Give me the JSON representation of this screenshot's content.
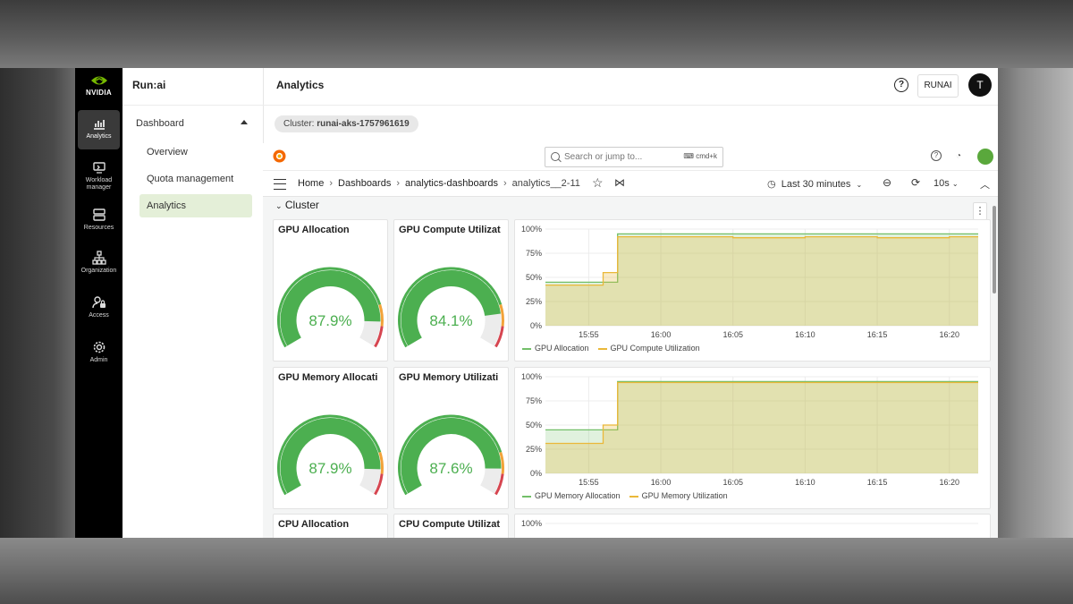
{
  "app": {
    "brand": "Run:ai",
    "logo_text": "NVIDIA",
    "page_title": "Analytics"
  },
  "rail": [
    {
      "label": "Analytics",
      "icon": "chart-icon",
      "active": true
    },
    {
      "label": "Workload manager",
      "icon": "workload-icon",
      "active": false
    },
    {
      "label": "Resources",
      "icon": "resources-icon",
      "active": false
    },
    {
      "label": "Organization",
      "icon": "organization-icon",
      "active": false
    },
    {
      "label": "Access",
      "icon": "access-icon",
      "active": false
    },
    {
      "label": "Admin",
      "icon": "gear-icon",
      "active": false
    }
  ],
  "sidebar": {
    "section": "Dashboard",
    "items": [
      {
        "label": "Overview",
        "active": false
      },
      {
        "label": "Quota management",
        "active": false
      },
      {
        "label": "Analytics",
        "active": true
      }
    ]
  },
  "header": {
    "tenant_button": "RUNAI",
    "avatar_initial": "T",
    "help_glyph": "?"
  },
  "cluster_chip": {
    "prefix": "Cluster: ",
    "name": "runai-aks-1757961619"
  },
  "grafana": {
    "search_placeholder": "Search or jump to...",
    "search_shortcut": "cmd+k",
    "breadcrumbs": [
      "Home",
      "Dashboards",
      "analytics-dashboards",
      "analytics__2-11"
    ],
    "time_range": "Last 30 minutes",
    "refresh_interval": "10s",
    "row_title": "Cluster"
  },
  "gauges": [
    {
      "title": "GPU Allocation",
      "value": 87.9,
      "display": "87.9%"
    },
    {
      "title": "GPU Compute Utilizat",
      "value": 84.1,
      "display": "84.1%"
    },
    {
      "title": "GPU Memory Allocati",
      "value": 87.9,
      "display": "87.9%"
    },
    {
      "title": "GPU Memory Utilizati",
      "value": 87.6,
      "display": "87.6%"
    },
    {
      "title": "CPU Allocation",
      "value": null,
      "display": ""
    },
    {
      "title": "CPU Compute Utilizat",
      "value": null,
      "display": ""
    }
  ],
  "colors": {
    "green": "#4caf50",
    "orange": "#f2a33a",
    "red": "#d64550",
    "accent": "#e4efd8"
  },
  "chart_data": [
    {
      "type": "area",
      "x": [
        "15:52",
        "15:53",
        "15:54",
        "15:55",
        "15:56",
        "15:57",
        "16:00",
        "16:05",
        "16:10",
        "16:15",
        "16:20",
        "16:22"
      ],
      "x_ticks": [
        "15:55",
        "16:00",
        "16:05",
        "16:10",
        "16:15",
        "16:20"
      ],
      "y_ticks": [
        "0%",
        "25%",
        "50%",
        "75%",
        "100%"
      ],
      "ylim": [
        0,
        100
      ],
      "series": [
        {
          "name": "GPU Allocation",
          "color": "#73bf69",
          "values": [
            45,
            45,
            45,
            45,
            45,
            95,
            95,
            95,
            95,
            95,
            95,
            95
          ]
        },
        {
          "name": "GPU Compute Utilization",
          "color": "#eab839",
          "values": [
            42,
            42,
            42,
            42,
            55,
            92,
            92,
            91,
            92,
            91,
            92,
            92
          ]
        }
      ]
    },
    {
      "type": "area",
      "x": [
        "15:52",
        "15:53",
        "15:54",
        "15:55",
        "15:56",
        "15:57",
        "16:00",
        "16:05",
        "16:10",
        "16:15",
        "16:20",
        "16:22"
      ],
      "x_ticks": [
        "15:55",
        "16:00",
        "16:05",
        "16:10",
        "16:15",
        "16:20"
      ],
      "y_ticks": [
        "0%",
        "25%",
        "50%",
        "75%",
        "100%"
      ],
      "ylim": [
        0,
        100
      ],
      "series": [
        {
          "name": "GPU Memory Allocation",
          "color": "#73bf69",
          "values": [
            45,
            45,
            45,
            45,
            45,
            95,
            95,
            95,
            95,
            95,
            95,
            95
          ]
        },
        {
          "name": "GPU Memory Utilization",
          "color": "#eab839",
          "values": [
            31,
            31,
            31,
            31,
            50,
            94,
            94,
            94,
            94,
            94,
            94,
            94
          ]
        }
      ]
    },
    {
      "type": "area",
      "y_ticks": [
        "100%"
      ],
      "ylim": [
        0,
        100
      ],
      "series": []
    }
  ]
}
